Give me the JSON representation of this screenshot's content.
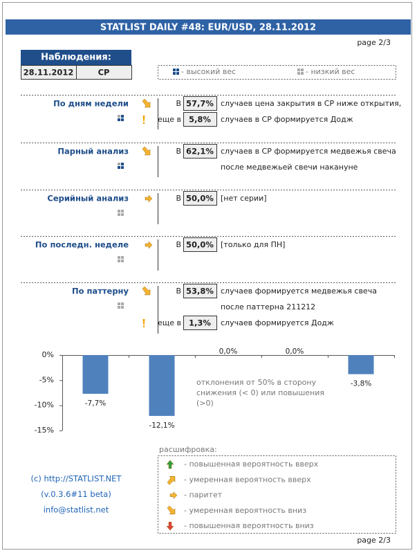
{
  "header": {
    "title": "STATLIST DAILY #48: EUR/USD, 28.11.2012",
    "page": "page 2/3"
  },
  "observations": {
    "title": "Наблюдения:",
    "date": "28.11.2012",
    "day": "СР"
  },
  "weights": {
    "high": "- высокий вес",
    "low": "- низкий вес"
  },
  "sections": [
    {
      "name": "По дням недели",
      "lines": [
        {
          "prefix": "В",
          "value": "57,7%",
          "text": "случаев цена закрытия в СР ниже открытия,"
        },
        {
          "prefix": "еще в",
          "value": "5,8%",
          "text": "случаев в СР формируется Додж"
        }
      ]
    },
    {
      "name": "Парный анализ",
      "lines": [
        {
          "prefix": "В",
          "value": "62,1%",
          "text": "случаев в СР формируется медвежья свеча"
        },
        {
          "text": "после медвежьей свечи накануне"
        }
      ]
    },
    {
      "name": "Серийный анализ",
      "lines": [
        {
          "prefix": "В",
          "value": "50,0%",
          "text": "[нет серии]"
        }
      ]
    },
    {
      "name": "По последн. неделе",
      "lines": [
        {
          "prefix": "В",
          "value": "50,0%",
          "text": "[только для ПН]"
        }
      ]
    },
    {
      "name": "По паттерну",
      "lines": [
        {
          "prefix": "В",
          "value": "53,8%",
          "text": "случаев формируется медвежья свеча"
        },
        {
          "text": "после паттерна 211212"
        },
        {
          "prefix": "еще в",
          "value": "1,3%",
          "text": "случаев формируется Додж"
        }
      ]
    }
  ],
  "chart_data": {
    "type": "bar",
    "categories": [
      null,
      null,
      null,
      null,
      null
    ],
    "values": [
      -7.7,
      -12.1,
      0,
      0,
      -3.8
    ],
    "value_labels": [
      "-7,7%",
      "-12,1%",
      "0,0%",
      "0,0%",
      "-3,8%"
    ],
    "color": "#4f81bd",
    "ylim": [
      -15,
      0
    ],
    "yticks": [
      {
        "value": 0,
        "label": "0%"
      },
      {
        "value": -5,
        "label": "-5%"
      },
      {
        "value": -10,
        "label": "-10%"
      },
      {
        "value": -15,
        "label": "-15%"
      }
    ],
    "annotation": [
      "отклонения от 50% в сторону",
      "снижения (< 0) или повышения",
      "(>0)"
    ]
  },
  "legend": {
    "title": "расшифровка:",
    "items": [
      "- повышенная вероятность вверх",
      "- умеренная вероятность вверх",
      "- паритет",
      "- умеренная вероятность вниз",
      "- повышенная вероятность вниз"
    ]
  },
  "footer": {
    "links": [
      "(c) http://STATLIST.NET",
      "(v.0.3.6#11 beta)",
      "info@statlist.net"
    ],
    "page": "page 2/3"
  }
}
